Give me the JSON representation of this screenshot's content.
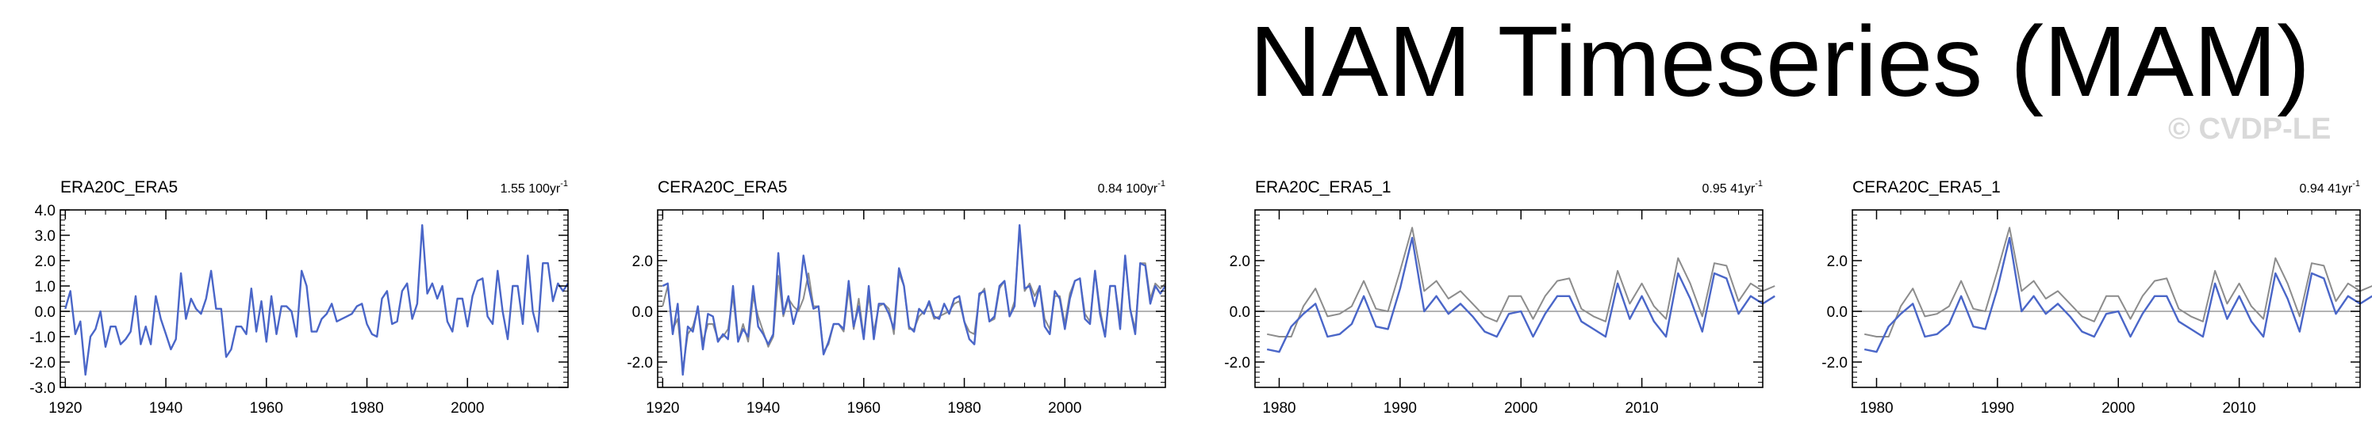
{
  "page": {
    "title": "NAM Timeseries (MAM)",
    "watermark": "© CVDP-LE"
  },
  "colors": {
    "model": "#4a66c8",
    "obs": "#8c8c8c",
    "zero": "#9a9a9a",
    "axis": "#000000"
  },
  "chart_data": [
    {
      "type": "line",
      "title": "ERA20C_ERA5",
      "trend_value": "1.55",
      "trend_unit": "100yr",
      "trend_exp": "-1",
      "xlim": [
        1919,
        2020
      ],
      "ylim": [
        -3.0,
        4.0
      ],
      "xticks": [
        1920,
        1940,
        1960,
        1980,
        2000
      ],
      "yticks": [
        -3.0,
        -2.0,
        -1.0,
        0.0,
        1.0,
        2.0,
        3.0,
        4.0
      ],
      "ytick_labels": [
        "-3.0",
        "-2.0",
        "-1.0",
        "0.0",
        "1.0",
        "2.0",
        "3.0",
        "4.0"
      ],
      "zero_line": true,
      "series": [
        {
          "role": "model",
          "x0": 1920,
          "values": [
            0.1,
            0.8,
            -0.9,
            -0.4,
            -2.5,
            -1.0,
            -0.7,
            0.0,
            -1.4,
            -0.6,
            -0.6,
            -1.3,
            -1.1,
            -0.8,
            0.6,
            -1.3,
            -0.6,
            -1.3,
            0.6,
            -0.3,
            -0.9,
            -1.5,
            -1.1,
            1.5,
            -0.3,
            0.5,
            0.1,
            -0.1,
            0.5,
            1.6,
            0.1,
            0.1,
            -1.8,
            -1.5,
            -0.6,
            -0.6,
            -0.9,
            0.9,
            -0.8,
            0.4,
            -1.2,
            0.6,
            -0.9,
            0.2,
            0.2,
            0.0,
            -1.0,
            1.6,
            1.0,
            -0.8,
            -0.8,
            -0.3,
            -0.1,
            0.3,
            -0.4,
            -0.3,
            -0.2,
            -0.1,
            0.2,
            0.3,
            -0.5,
            -0.9,
            -1.0,
            0.5,
            0.8,
            -0.5,
            -0.4,
            0.8,
            1.1,
            -0.3,
            0.3,
            3.4,
            0.7,
            1.1,
            0.5,
            1.0,
            -0.4,
            -0.8,
            0.5,
            0.5,
            -0.6,
            0.6,
            1.2,
            1.3,
            -0.2,
            -0.5,
            1.6,
            0.0,
            -1.1,
            1.0,
            1.0,
            -0.5,
            2.2,
            0.0,
            -0.8,
            1.9,
            1.9,
            0.4,
            1.1,
            0.8,
            1.1
          ]
        }
      ]
    },
    {
      "type": "line",
      "title": "CERA20C_ERA5",
      "trend_value": "0.84",
      "trend_unit": "100yr",
      "trend_exp": "-1",
      "xlim": [
        1919,
        2020
      ],
      "ylim": [
        -3.0,
        4.0
      ],
      "xticks": [
        1920,
        1940,
        1960,
        1980,
        2000
      ],
      "yticks": [
        -2.0,
        0.0,
        2.0
      ],
      "ytick_labels": [
        "-2.0",
        "0.0",
        "2.0"
      ],
      "zero_line": true,
      "series": [
        {
          "role": "obs",
          "x0": 1920,
          "values": [
            0.2,
            1.0,
            -0.7,
            -0.3,
            -2.3,
            -0.9,
            -0.6,
            0.1,
            -1.2,
            -0.5,
            -0.5,
            -1.1,
            -1.0,
            -0.7,
            0.6,
            -1.2,
            -0.5,
            -1.2,
            0.6,
            -0.2,
            -0.8,
            -1.4,
            -1.0,
            1.4,
            -0.2,
            0.5,
            0.2,
            0.0,
            0.5,
            1.5,
            0.2,
            0.2,
            -1.6,
            -1.3,
            -0.5,
            -0.5,
            -0.8,
            0.9,
            -0.7,
            0.5,
            -1.0,
            0.6,
            -0.8,
            0.2,
            0.3,
            0.1,
            -0.9,
            1.5,
            1.0,
            -0.7,
            -0.7,
            -0.2,
            0.0,
            0.3,
            -0.3,
            -0.2,
            -0.1,
            0.0,
            0.3,
            0.4,
            -0.4,
            -0.8,
            -0.9,
            0.6,
            0.9,
            -0.4,
            -0.3,
            0.9,
            1.2,
            -0.2,
            0.4,
            3.2,
            0.8,
            1.1,
            0.6,
            1.0,
            -0.3,
            -0.7,
            0.6,
            0.6,
            -0.5,
            0.7,
            1.2,
            1.3,
            -0.1,
            -0.4,
            1.6,
            0.1,
            -1.0,
            1.0,
            1.0,
            -0.4,
            2.1,
            0.1,
            -0.7,
            1.9,
            1.9,
            0.5,
            1.1,
            0.9,
            1.1
          ]
        },
        {
          "role": "model",
          "x0": 1920,
          "values": [
            1.0,
            1.1,
            -0.9,
            0.3,
            -2.5,
            -0.6,
            -0.8,
            0.2,
            -1.5,
            -0.1,
            -0.2,
            -1.2,
            -0.9,
            -1.1,
            1.0,
            -1.2,
            -0.7,
            -1.0,
            1.0,
            -0.6,
            -0.9,
            -1.3,
            -0.9,
            2.3,
            -0.1,
            0.6,
            -0.5,
            0.2,
            2.2,
            1.0,
            0.1,
            0.2,
            -1.7,
            -1.2,
            -0.5,
            -0.5,
            -0.7,
            1.2,
            -0.6,
            0.2,
            -1.1,
            1.0,
            -1.1,
            0.3,
            0.3,
            -0.1,
            -0.7,
            1.7,
            1.0,
            -0.6,
            -0.8,
            0.1,
            -0.1,
            0.4,
            -0.2,
            -0.3,
            0.3,
            -0.1,
            0.5,
            0.6,
            -0.4,
            -1.1,
            -1.3,
            0.7,
            0.8,
            -0.4,
            -0.2,
            1.0,
            1.2,
            -0.2,
            0.2,
            3.4,
            0.9,
            1.0,
            0.2,
            1.0,
            -0.6,
            -0.9,
            0.8,
            0.5,
            -0.7,
            0.5,
            1.2,
            1.3,
            -0.3,
            -0.5,
            1.6,
            -0.1,
            -1.0,
            1.0,
            1.0,
            -0.7,
            2.2,
            0.1,
            -0.9,
            1.9,
            1.8,
            0.3,
            1.0,
            0.7,
            1.0
          ]
        }
      ]
    },
    {
      "type": "line",
      "title": "ERA20C_ERA5_1",
      "trend_value": "0.95",
      "trend_unit": "41yr",
      "trend_exp": "-1",
      "xlim": [
        1978,
        2020
      ],
      "ylim": [
        -3.0,
        4.0
      ],
      "xticks": [
        1980,
        1990,
        2000,
        2010
      ],
      "yticks": [
        -2.0,
        0.0,
        2.0
      ],
      "ytick_labels": [
        "-2.0",
        "0.0",
        "2.0"
      ],
      "zero_line": true,
      "series": [
        {
          "role": "obs",
          "x0": 1979,
          "values": [
            -0.9,
            -1.0,
            -1.0,
            0.2,
            0.9,
            -0.2,
            -0.1,
            0.2,
            1.2,
            0.1,
            0.0,
            1.6,
            3.3,
            0.8,
            1.2,
            0.5,
            0.8,
            0.3,
            -0.2,
            -0.4,
            0.6,
            0.6,
            -0.3,
            0.6,
            1.2,
            1.3,
            0.1,
            -0.2,
            -0.4,
            1.6,
            0.3,
            1.1,
            0.2,
            -0.3,
            2.1,
            1.1,
            -0.2,
            1.9,
            1.8,
            0.4,
            1.1,
            0.8,
            1.0
          ]
        },
        {
          "role": "model",
          "x0": 1979,
          "values": [
            -1.5,
            -1.6,
            -0.6,
            -0.1,
            0.3,
            -1.0,
            -0.9,
            -0.5,
            0.6,
            -0.6,
            -0.7,
            0.9,
            2.9,
            0.0,
            0.6,
            -0.1,
            0.3,
            -0.2,
            -0.8,
            -1.0,
            -0.1,
            0.0,
            -1.0,
            -0.1,
            0.6,
            0.6,
            -0.4,
            -0.7,
            -1.0,
            1.1,
            -0.3,
            0.6,
            -0.4,
            -1.0,
            1.5,
            0.5,
            -0.8,
            1.5,
            1.3,
            -0.1,
            0.6,
            0.3,
            0.6
          ]
        }
      ]
    },
    {
      "type": "line",
      "title": "CERA20C_ERA5_1",
      "trend_value": "0.94",
      "trend_unit": "41yr",
      "trend_exp": "-1",
      "xlim": [
        1978,
        2020
      ],
      "ylim": [
        -3.0,
        4.0
      ],
      "xticks": [
        1980,
        1990,
        2000,
        2010
      ],
      "yticks": [
        -2.0,
        0.0,
        2.0
      ],
      "ytick_labels": [
        "-2.0",
        "0.0",
        "2.0"
      ],
      "zero_line": true,
      "series": [
        {
          "role": "obs",
          "x0": 1979,
          "values": [
            -0.9,
            -1.0,
            -1.0,
            0.2,
            0.9,
            -0.2,
            -0.1,
            0.2,
            1.2,
            0.1,
            0.0,
            1.6,
            3.3,
            0.8,
            1.2,
            0.5,
            0.8,
            0.3,
            -0.2,
            -0.4,
            0.6,
            0.6,
            -0.3,
            0.6,
            1.2,
            1.3,
            0.1,
            -0.2,
            -0.4,
            1.6,
            0.3,
            1.1,
            0.2,
            -0.3,
            2.1,
            1.1,
            -0.2,
            1.9,
            1.8,
            0.4,
            1.1,
            0.8,
            1.0
          ]
        },
        {
          "role": "model",
          "x0": 1979,
          "values": [
            -1.5,
            -1.6,
            -0.6,
            -0.1,
            0.3,
            -1.0,
            -0.9,
            -0.5,
            0.6,
            -0.6,
            -0.7,
            0.9,
            2.9,
            0.0,
            0.6,
            -0.1,
            0.3,
            -0.2,
            -0.8,
            -1.0,
            -0.1,
            0.0,
            -1.0,
            -0.1,
            0.6,
            0.6,
            -0.4,
            -0.7,
            -1.0,
            1.1,
            -0.3,
            0.6,
            -0.4,
            -1.0,
            1.5,
            0.5,
            -0.8,
            1.5,
            1.3,
            -0.1,
            0.6,
            0.3,
            0.6
          ]
        }
      ]
    }
  ]
}
